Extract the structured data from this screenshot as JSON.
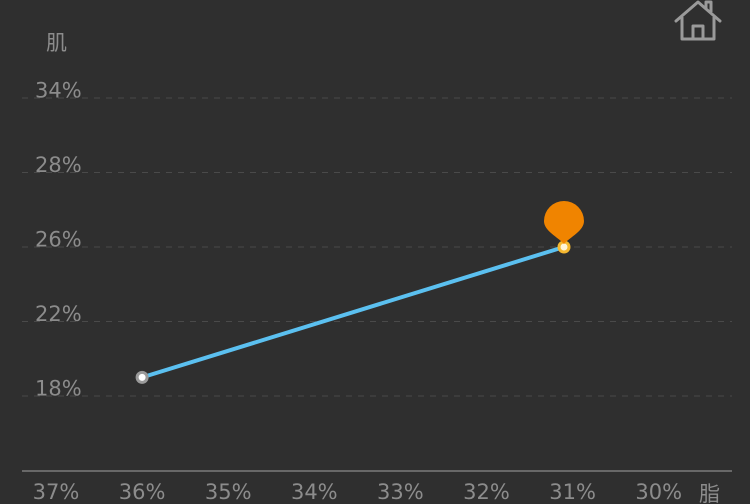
{
  "header": {
    "home_icon": "home-icon"
  },
  "chart_data": {
    "type": "line",
    "ylabel": "肌",
    "xlabel": "脂",
    "y_ticks": [
      "34%",
      "28%",
      "26%",
      "22%",
      "18%"
    ],
    "x_ticks": [
      "37%",
      "36%",
      "35%",
      "34%",
      "33%",
      "32%",
      "31%",
      "30%"
    ],
    "x_axis_reversed": true,
    "y_axis_scale": "categorical-band",
    "grid": true,
    "series": [
      {
        "points": [
          {
            "x": 36,
            "y": 19
          },
          {
            "x": 31.1,
            "y": 26
          }
        ]
      }
    ],
    "marker": {
      "type": "location-pin",
      "at_point": 1
    }
  },
  "colors": {
    "background": "#2f2f2f",
    "line": "#5bc0f0",
    "grid": "#4a4a4a",
    "axis": "#8a8a8a",
    "label": "#8c8c8c",
    "pin": "#f08400",
    "end_point": "#f5b830",
    "start_point": "#ffffff",
    "start_point_ring": "#9a9a9a"
  }
}
